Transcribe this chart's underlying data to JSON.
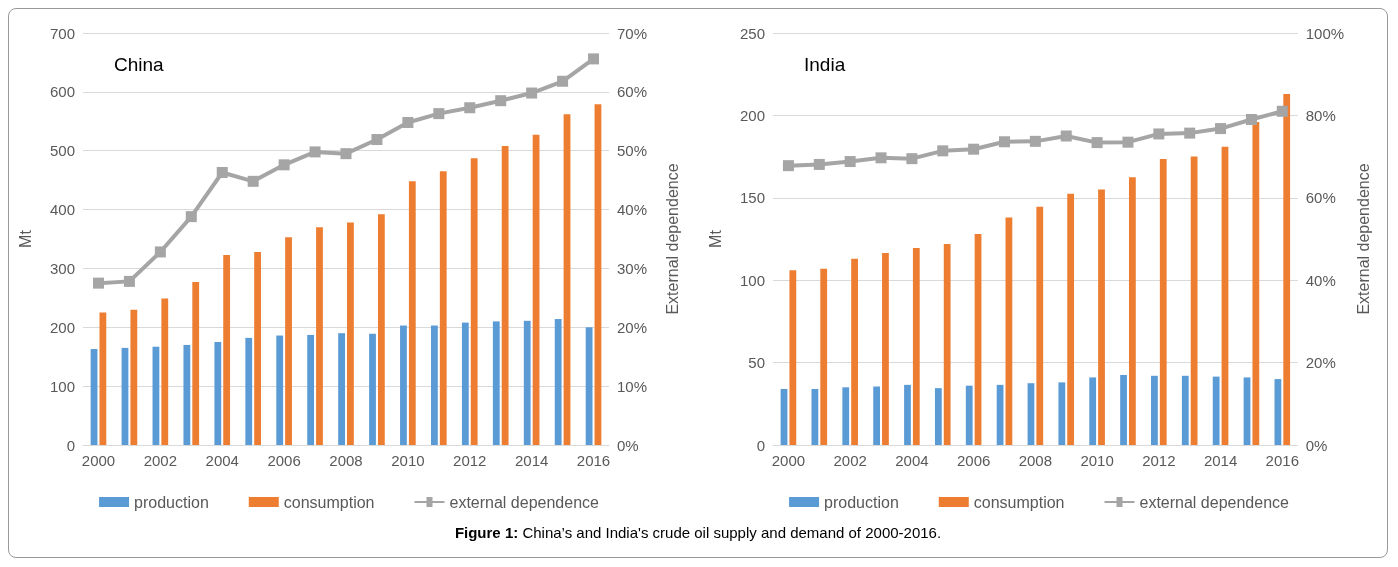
{
  "chart_data": [
    {
      "type": "bar",
      "title": "China",
      "categories": [
        "2000",
        null,
        "2002",
        null,
        "2004",
        null,
        "2006",
        null,
        "2008",
        null,
        "2010",
        null,
        "2012",
        null,
        "2014",
        null,
        "2016"
      ],
      "ylabel": "Mt",
      "y2label": "External dependence",
      "ylim": [
        0,
        700
      ],
      "yticks": [
        0,
        100,
        200,
        300,
        400,
        500,
        600,
        700
      ],
      "y2lim": [
        0,
        70
      ],
      "y2ticks": [
        {
          "value": 0,
          "label": "0%"
        },
        {
          "value": 10,
          "label": "10%"
        },
        {
          "value": 20,
          "label": "20%"
        },
        {
          "value": 30,
          "label": "30%"
        },
        {
          "value": 40,
          "label": "40%"
        },
        {
          "value": 50,
          "label": "50%"
        },
        {
          "value": 60,
          "label": "60%"
        },
        {
          "value": 70,
          "label": "70%"
        }
      ],
      "grid": "y",
      "legend": "bottom",
      "series": [
        {
          "name": "production",
          "color": "#5b9bd5",
          "values": [
            163,
            165,
            167,
            170,
            175,
            182,
            186,
            187,
            190,
            189,
            203,
            203,
            208,
            210,
            211,
            214,
            200
          ]
        },
        {
          "name": "consumption",
          "color": "#ed7d31",
          "values": [
            225,
            230,
            249,
            277,
            323,
            328,
            353,
            370,
            378,
            392,
            448,
            465,
            487,
            508,
            527,
            562,
            579
          ]
        },
        {
          "name": "external dependence",
          "type": "line",
          "axis": "y2",
          "marker": "square",
          "color": "#a5a5a5",
          "values": [
            27.5,
            27.8,
            32.8,
            38.8,
            46.3,
            44.8,
            47.6,
            49.8,
            49.5,
            51.9,
            54.8,
            56.3,
            57.3,
            58.5,
            59.8,
            61.8,
            65.6
          ]
        }
      ],
      "annotations": [
        "Figure 1:",
        "China’s and India's crude oil supply and demand of 2000-2016."
      ]
    },
    {
      "type": "bar",
      "title": "India",
      "categories": [
        "2000",
        null,
        "2002",
        null,
        "2004",
        null,
        "2006",
        null,
        "2008",
        null,
        "2010",
        null,
        "2012",
        null,
        "2014",
        null,
        "2016"
      ],
      "ylabel": "Mt",
      "y2label": "External dependence",
      "ylim": [
        0,
        250
      ],
      "yticks": [
        0,
        50,
        100,
        150,
        200,
        250
      ],
      "y2lim": [
        0,
        100
      ],
      "y2ticks": [
        {
          "value": 0,
          "label": "0%"
        },
        {
          "value": 20,
          "label": "20%"
        },
        {
          "value": 40,
          "label": "40%"
        },
        {
          "value": 60,
          "label": "60%"
        },
        {
          "value": 80,
          "label": "80%"
        },
        {
          "value": 100,
          "label": "100%"
        }
      ],
      "grid": "y",
      "legend": "bottom",
      "series": [
        {
          "name": "production",
          "color": "#5b9bd5",
          "values": [
            34,
            34,
            35,
            35.5,
            36.5,
            34.5,
            36,
            36.5,
            37.5,
            38,
            41,
            42.5,
            42,
            42,
            41.5,
            41,
            40
          ]
        },
        {
          "name": "consumption",
          "color": "#ed7d31",
          "values": [
            106,
            107,
            113,
            116.5,
            119.5,
            122,
            128,
            138,
            144.5,
            152.5,
            155,
            162.5,
            173.5,
            175,
            181,
            196,
            213
          ]
        },
        {
          "name": "external dependence",
          "type": "line",
          "axis": "y2",
          "marker": "square",
          "color": "#a5a5a5",
          "values": [
            67.8,
            68.1,
            68.8,
            69.7,
            69.5,
            71.4,
            71.8,
            73.6,
            73.7,
            75,
            73.4,
            73.5,
            75.5,
            75.7,
            76.8,
            79,
            81
          ]
        }
      ]
    }
  ]
}
